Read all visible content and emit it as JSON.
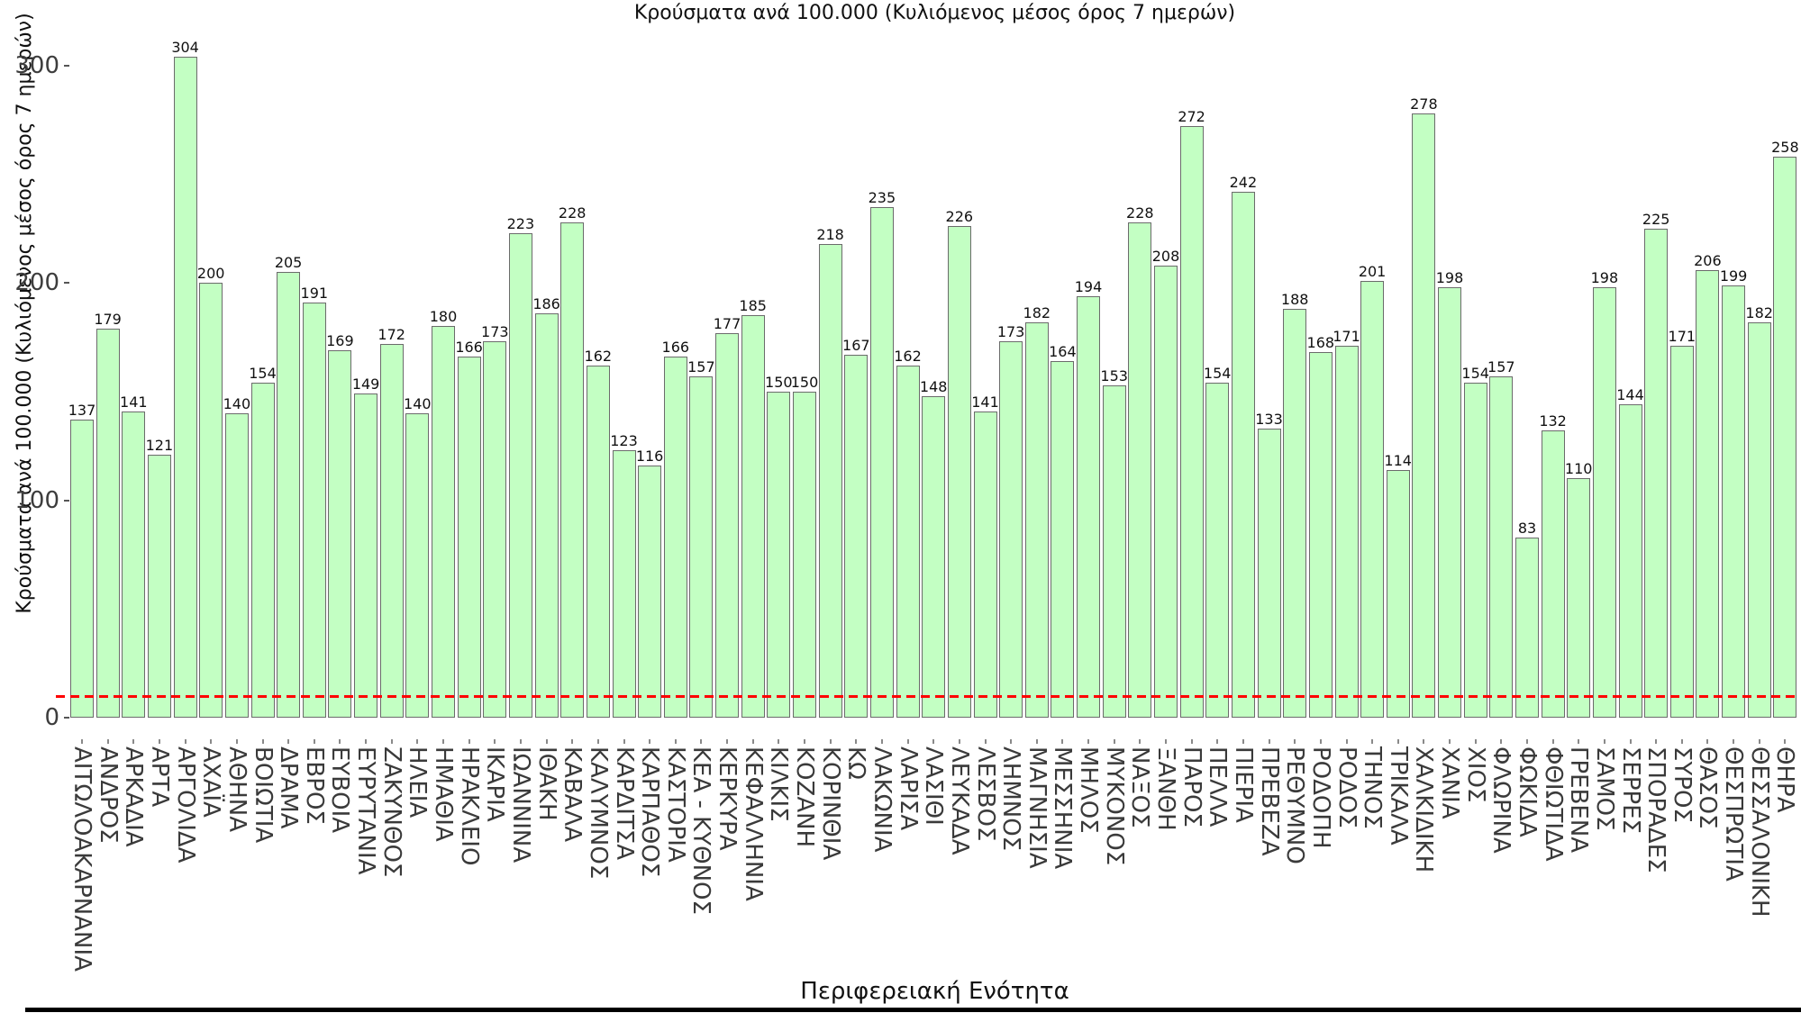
{
  "chart_data": {
    "type": "bar",
    "title": "Κρούσματα ανά 100.000 (Κυλιόμενος μέσος όρος 7 ημερών)",
    "ylabel": "Κρούσματα ανά 100.000 (Κυλιόμενος μέσος όρος 7 ημερών)",
    "xlabel": "Περιφερειακή Ενότητα",
    "categories": [
      "ΑΙΤΩΛΟΑΚΑΡΝΑΝΙΑ",
      "ΑΝΔΡΟΣ",
      "ΑΡΚΑΔΙΑ",
      "ΑΡΤΑ",
      "ΑΡΓΟΛΙΔΑ",
      "ΑΧΑΪΑ",
      "ΑΘΗΝΑ",
      "ΒΟΙΩΤΙΑ",
      "ΔΡΑΜΑ",
      "ΕΒΡΟΣ",
      "ΕΥΒΟΙΑ",
      "ΕΥΡΥΤΑΝΙΑ",
      "ΖΑΚΥΝΘΟΣ",
      "ΗΛΕΙΑ",
      "ΗΜΑΘΙΑ",
      "ΗΡΑΚΛΕΙΟ",
      "ΙΚΑΡΙΑ",
      "ΙΩΑΝΝΙΝΑ",
      "ΙΘΑΚΗ",
      "ΚΑΒΑΛΑ",
      "ΚΑΛΥΜΝΟΣ",
      "ΚΑΡΔΙΤΣΑ",
      "ΚΑΡΠΑΘΟΣ",
      "ΚΑΣΤΟΡΙΑ",
      "ΚΕΑ - ΚΥΘΝΟΣ",
      "ΚΕΡΚΥΡΑ",
      "ΚΕΦΑΛΛΗΝΙΑ",
      "ΚΙΛΚΙΣ",
      "ΚΟΖΑΝΗ",
      "ΚΟΡΙΝΘΙΑ",
      "ΚΩ",
      "ΛΑΚΩΝΙΑ",
      "ΛΑΡΙΣΑ",
      "ΛΑΣΙΘΙ",
      "ΛΕΥΚΑΔΑ",
      "ΛΕΣΒΟΣ",
      "ΛΗΜΝΟΣ",
      "ΜΑΓΝΗΣΙΑ",
      "ΜΕΣΣΗΝΙΑ",
      "ΜΗΛΟΣ",
      "ΜΥΚΟΝΟΣ",
      "ΝΑΞΟΣ",
      "ΞΑΝΘΗ",
      "ΠΑΡΟΣ",
      "ΠΕΛΛΑ",
      "ΠΙΕΡΙΑ",
      "ΠΡΕΒΕΖΑ",
      "ΡΕΘΥΜΝΟ",
      "ΡΟΔΟΠΗ",
      "ΡΟΔΟΣ",
      "ΤΗΝΟΣ",
      "ΤΡΙΚΑΛΑ",
      "ΧΑΛΚΙΔΙΚΗ",
      "ΧΑΝΙΑ",
      "ΧΙΟΣ",
      "ΦΛΩΡΙΝΑ",
      "ΦΩΚΙΔΑ",
      "ΦΘΙΩΤΙΔΑ",
      "ΓΡΕΒΕΝΑ",
      "ΣΑΜΟΣ",
      "ΣΕΡΡΕΣ",
      "ΣΠΟΡΑΔΕΣ",
      "ΣΥΡΟΣ",
      "ΘΑΣΟΣ",
      "ΘΕΣΠΡΩΤΙΑ",
      "ΘΕΣΣΑΛΟΝΙΚΗ",
      "ΘΗΡΑ"
    ],
    "values": [
      137,
      179,
      141,
      121,
      304,
      200,
      140,
      154,
      205,
      191,
      169,
      149,
      172,
      140,
      180,
      166,
      173,
      223,
      186,
      228,
      162,
      123,
      116,
      166,
      157,
      177,
      185,
      150,
      150,
      218,
      167,
      235,
      162,
      148,
      226,
      141,
      173,
      182,
      164,
      194,
      153,
      228,
      208,
      272,
      154,
      242,
      133,
      188,
      168,
      171,
      201,
      114,
      278,
      198,
      154,
      157,
      83,
      132,
      110,
      198,
      144,
      225,
      171,
      206,
      199,
      182,
      258
    ],
    "yticks": [
      0,
      100,
      200,
      300
    ],
    "ylim": [
      0,
      310
    ],
    "grid": false,
    "legend_position": "none",
    "threshold_line": {
      "value": 10,
      "color": "#ff0000",
      "style": "dashed"
    },
    "colors": {
      "bar_fill": "#c3ffc3",
      "bar_edge": "#6b6b6b",
      "threshold": "#ff0000",
      "tick_text": "#3d3d3d"
    }
  }
}
